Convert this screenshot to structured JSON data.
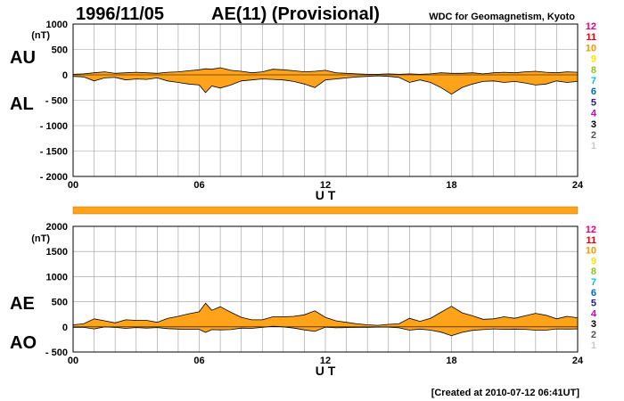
{
  "header": {
    "date": "1996/11/05",
    "title": "AE(11) (Provisional)",
    "organization": "WDC for Geomagnetism, Kyoto"
  },
  "footer": {
    "created": "[Created at 2010-07-12 06:41UT]"
  },
  "colors": {
    "fill": "#ffa31a",
    "line": "#000000",
    "grid": "#9a9a9a",
    "bar": "#ffa31a"
  },
  "legend": {
    "entries": [
      {
        "label": "12",
        "color": "#e6007e"
      },
      {
        "label": "11",
        "color": "#e60012"
      },
      {
        "label": "10",
        "color": "#f39800"
      },
      {
        "label": "9",
        "color": "#ffe100"
      },
      {
        "label": "8",
        "color": "#8fc31f"
      },
      {
        "label": "7",
        "color": "#00c8d7"
      },
      {
        "label": "6",
        "color": "#0068b7"
      },
      {
        "label": "5",
        "color": "#1d2088"
      },
      {
        "label": "4",
        "color": "#c800c8"
      },
      {
        "label": "3",
        "color": "#000000"
      },
      {
        "label": "2",
        "color": "#595757"
      },
      {
        "label": "1",
        "color": "#c9c9c9"
      }
    ]
  },
  "chart_data": [
    {
      "type": "area",
      "panel": "AU/AL",
      "series_labels": [
        "AU",
        "AL"
      ],
      "unit": "(nT)",
      "xlabel": "U T",
      "xlim": [
        0,
        24
      ],
      "xticks": [
        "00",
        "06",
        "12",
        "18",
        "24"
      ],
      "ylim": [
        -2000,
        1000
      ],
      "yticks": [
        "1000",
        "500",
        "0",
        "- 500",
        "- 1000",
        "- 1500",
        "- 2000"
      ],
      "grid": true,
      "x_hours": [
        0,
        0.5,
        1,
        1.5,
        2,
        2.5,
        3,
        3.5,
        4,
        4.5,
        5,
        5.5,
        6,
        6.3,
        6.6,
        7,
        7.5,
        8,
        8.5,
        9,
        9.5,
        10,
        10.5,
        11,
        11.5,
        12,
        12.5,
        13,
        13.5,
        14,
        14.5,
        15,
        15.5,
        16,
        16.5,
        17,
        17.5,
        18,
        18.5,
        19,
        19.5,
        20,
        20.5,
        21,
        21.5,
        22,
        22.5,
        23,
        23.5,
        24
      ],
      "upper": [
        10,
        20,
        40,
        60,
        30,
        40,
        50,
        40,
        30,
        50,
        60,
        80,
        100,
        120,
        110,
        140,
        90,
        70,
        40,
        60,
        110,
        100,
        80,
        60,
        70,
        90,
        40,
        30,
        20,
        10,
        10,
        20,
        10,
        20,
        10,
        20,
        40,
        30,
        30,
        40,
        20,
        40,
        50,
        40,
        60,
        70,
        50,
        40,
        60,
        50
      ],
      "lower": [
        -30,
        -40,
        -120,
        -60,
        -50,
        -100,
        -80,
        -90,
        -60,
        -120,
        -150,
        -180,
        -200,
        -350,
        -220,
        -260,
        -200,
        -120,
        -100,
        -80,
        -90,
        -100,
        -130,
        -180,
        -250,
        -100,
        -80,
        -60,
        -40,
        -30,
        -20,
        -30,
        -50,
        -150,
        -100,
        -150,
        -250,
        -380,
        -250,
        -180,
        -130,
        -120,
        -150,
        -130,
        -160,
        -200,
        -180,
        -120,
        -150,
        -130
      ]
    },
    {
      "type": "area",
      "panel": "AE/AO",
      "series_labels": [
        "AE",
        "AO"
      ],
      "unit": "(nT)",
      "xlabel": "U T",
      "xlim": [
        0,
        24
      ],
      "xticks": [
        "00",
        "06",
        "12",
        "18",
        "24"
      ],
      "ylim": [
        -500,
        2000
      ],
      "yticks": [
        "2000",
        "1500",
        "1000",
        "500",
        "0",
        "- 500"
      ],
      "grid": true,
      "x_hours": [
        0,
        0.5,
        1,
        1.5,
        2,
        2.5,
        3,
        3.5,
        4,
        4.5,
        5,
        5.5,
        6,
        6.3,
        6.6,
        7,
        7.5,
        8,
        8.5,
        9,
        9.5,
        10,
        10.5,
        11,
        11.5,
        12,
        12.5,
        13,
        13.5,
        14,
        14.5,
        15,
        15.5,
        16,
        16.5,
        17,
        17.5,
        18,
        18.5,
        19,
        19.5,
        20,
        20.5,
        21,
        21.5,
        22,
        22.5,
        23,
        23.5,
        24
      ],
      "upper": [
        40,
        60,
        160,
        120,
        80,
        140,
        130,
        130,
        90,
        170,
        210,
        260,
        300,
        470,
        330,
        400,
        290,
        190,
        140,
        140,
        200,
        200,
        210,
        240,
        320,
        190,
        120,
        90,
        60,
        40,
        30,
        50,
        60,
        170,
        110,
        170,
        290,
        410,
        280,
        220,
        150,
        160,
        200,
        170,
        220,
        270,
        230,
        160,
        210,
        180
      ],
      "lower": [
        -10,
        -10,
        -40,
        0,
        -10,
        -30,
        -15,
        -25,
        -15,
        -35,
        -45,
        -50,
        -50,
        -110,
        -55,
        -60,
        -55,
        -25,
        -30,
        -10,
        10,
        0,
        -25,
        -60,
        -90,
        -5,
        -20,
        -15,
        -10,
        -10,
        -5,
        -5,
        -20,
        -65,
        -45,
        -65,
        -105,
        -175,
        -110,
        -70,
        -55,
        -40,
        -50,
        -45,
        -50,
        -65,
        -65,
        -40,
        -45,
        -40
      ]
    }
  ]
}
